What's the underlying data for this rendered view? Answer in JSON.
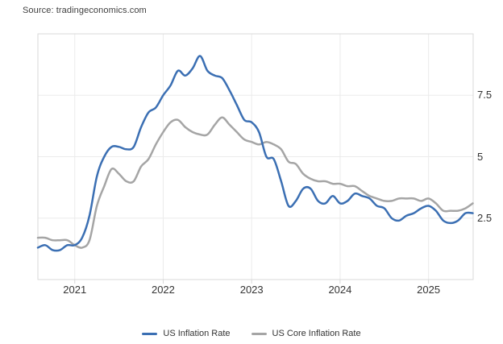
{
  "source_label": "Source: tradingeconomics.com",
  "chart_data": {
    "type": "line",
    "title": "",
    "xlabel": "",
    "ylabel": "",
    "unit": "percent",
    "frequency": "monthly",
    "x_start": "2020-08",
    "x_end": "2025-07",
    "ylim": [
      0,
      10
    ],
    "y_ticks": [
      2.5,
      5,
      7.5
    ],
    "y_tick_labels": [
      "2.5",
      "5",
      "7.5"
    ],
    "x_tick_labels": [
      "2021",
      "2022",
      "2023",
      "2024",
      "2025"
    ],
    "grid": true,
    "legend_position": "bottom",
    "series": [
      {
        "name": "US Inflation Rate",
        "color": "#3b6fb3",
        "values": [
          1.3,
          1.4,
          1.2,
          1.2,
          1.4,
          1.4,
          1.7,
          2.6,
          4.2,
          5.0,
          5.4,
          5.4,
          5.3,
          5.4,
          6.2,
          6.8,
          7.0,
          7.5,
          7.9,
          8.5,
          8.3,
          8.6,
          9.1,
          8.5,
          8.3,
          8.2,
          7.7,
          7.1,
          6.5,
          6.4,
          6.0,
          5.0,
          4.9,
          4.0,
          3.0,
          3.2,
          3.7,
          3.7,
          3.2,
          3.1,
          3.4,
          3.1,
          3.2,
          3.5,
          3.4,
          3.3,
          3.0,
          2.9,
          2.5,
          2.4,
          2.6,
          2.7,
          2.9,
          3.0,
          2.8,
          2.4,
          2.3,
          2.4,
          2.7,
          2.7
        ]
      },
      {
        "name": "US Core Inflation Rate",
        "color": "#a5a5a5",
        "values": [
          1.7,
          1.7,
          1.6,
          1.6,
          1.6,
          1.4,
          1.3,
          1.6,
          3.0,
          3.8,
          4.5,
          4.3,
          4.0,
          4.0,
          4.6,
          4.9,
          5.5,
          6.0,
          6.4,
          6.5,
          6.2,
          6.0,
          5.9,
          5.9,
          6.3,
          6.6,
          6.3,
          6.0,
          5.7,
          5.6,
          5.5,
          5.6,
          5.5,
          5.3,
          4.8,
          4.7,
          4.3,
          4.1,
          4.0,
          4.0,
          3.9,
          3.9,
          3.8,
          3.8,
          3.6,
          3.4,
          3.3,
          3.2,
          3.2,
          3.3,
          3.3,
          3.3,
          3.2,
          3.3,
          3.1,
          2.8,
          2.8,
          2.8,
          2.9,
          3.1
        ]
      }
    ]
  }
}
